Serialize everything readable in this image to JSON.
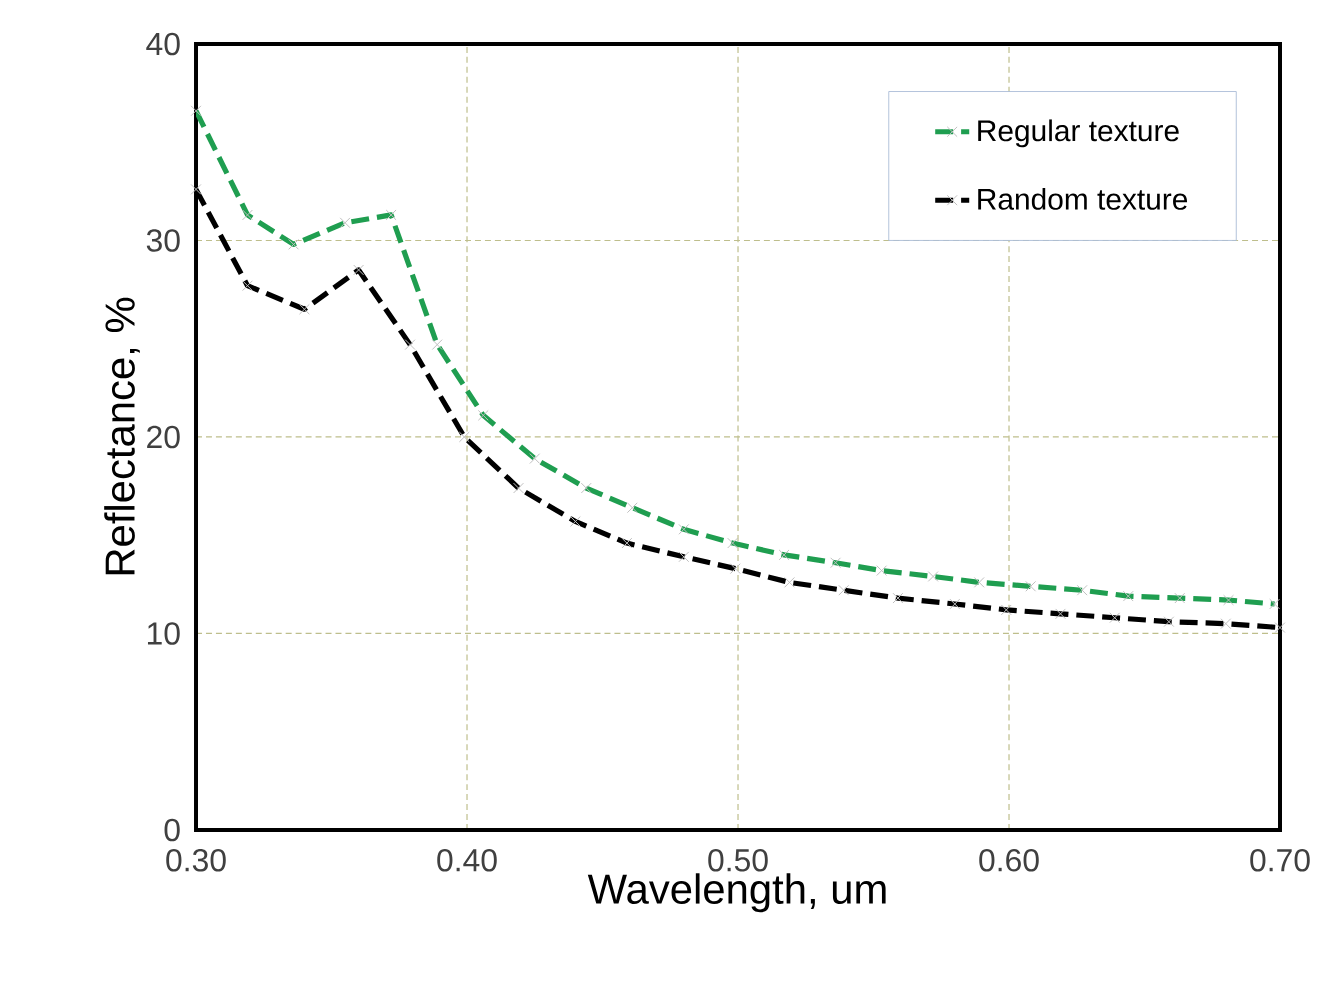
{
  "chart_data": {
    "type": "line",
    "xlabel": "Wavelength, um",
    "ylabel": "Reflectance, %",
    "xlim": [
      0.3,
      0.7
    ],
    "ylim": [
      0,
      40
    ],
    "xticks": [
      {
        "value": 0.3,
        "label": "0.30"
      },
      {
        "value": 0.4,
        "label": "0.40"
      },
      {
        "value": 0.5,
        "label": "0.50"
      },
      {
        "value": 0.6,
        "label": "0.60"
      },
      {
        "value": 0.7,
        "label": "0.70"
      }
    ],
    "yticks": [
      0,
      10,
      20,
      30,
      40
    ],
    "grid": true,
    "legend": "top right",
    "marker": "cross",
    "line_style": "dashed",
    "series": [
      {
        "name": "Regular texture",
        "color": "#1f9e50",
        "x": [
          0.3,
          0.319,
          0.336,
          0.355,
          0.372,
          0.389,
          0.406,
          0.425,
          0.444,
          0.461,
          0.48,
          0.498,
          0.517,
          0.536,
          0.553,
          0.572,
          0.589,
          0.608,
          0.627,
          0.644,
          0.663,
          0.681,
          0.698
        ],
        "values": [
          36.6,
          31.3,
          29.8,
          30.9,
          31.3,
          24.7,
          21.1,
          18.9,
          17.4,
          16.4,
          15.3,
          14.6,
          14.0,
          13.6,
          13.2,
          12.9,
          12.6,
          12.4,
          12.2,
          11.9,
          11.8,
          11.7,
          11.5
        ]
      },
      {
        "name": "Random texture",
        "color": "#000000",
        "x": [
          0.3,
          0.319,
          0.34,
          0.36,
          0.379,
          0.399,
          0.419,
          0.44,
          0.459,
          0.48,
          0.499,
          0.519,
          0.539,
          0.559,
          0.58,
          0.599,
          0.619,
          0.639,
          0.659,
          0.68,
          0.7
        ],
        "values": [
          32.6,
          27.7,
          26.5,
          28.5,
          24.7,
          20.0,
          17.4,
          15.7,
          14.6,
          13.9,
          13.3,
          12.6,
          12.2,
          11.8,
          11.5,
          11.2,
          11.0,
          10.8,
          10.6,
          10.5,
          10.3
        ]
      }
    ]
  }
}
